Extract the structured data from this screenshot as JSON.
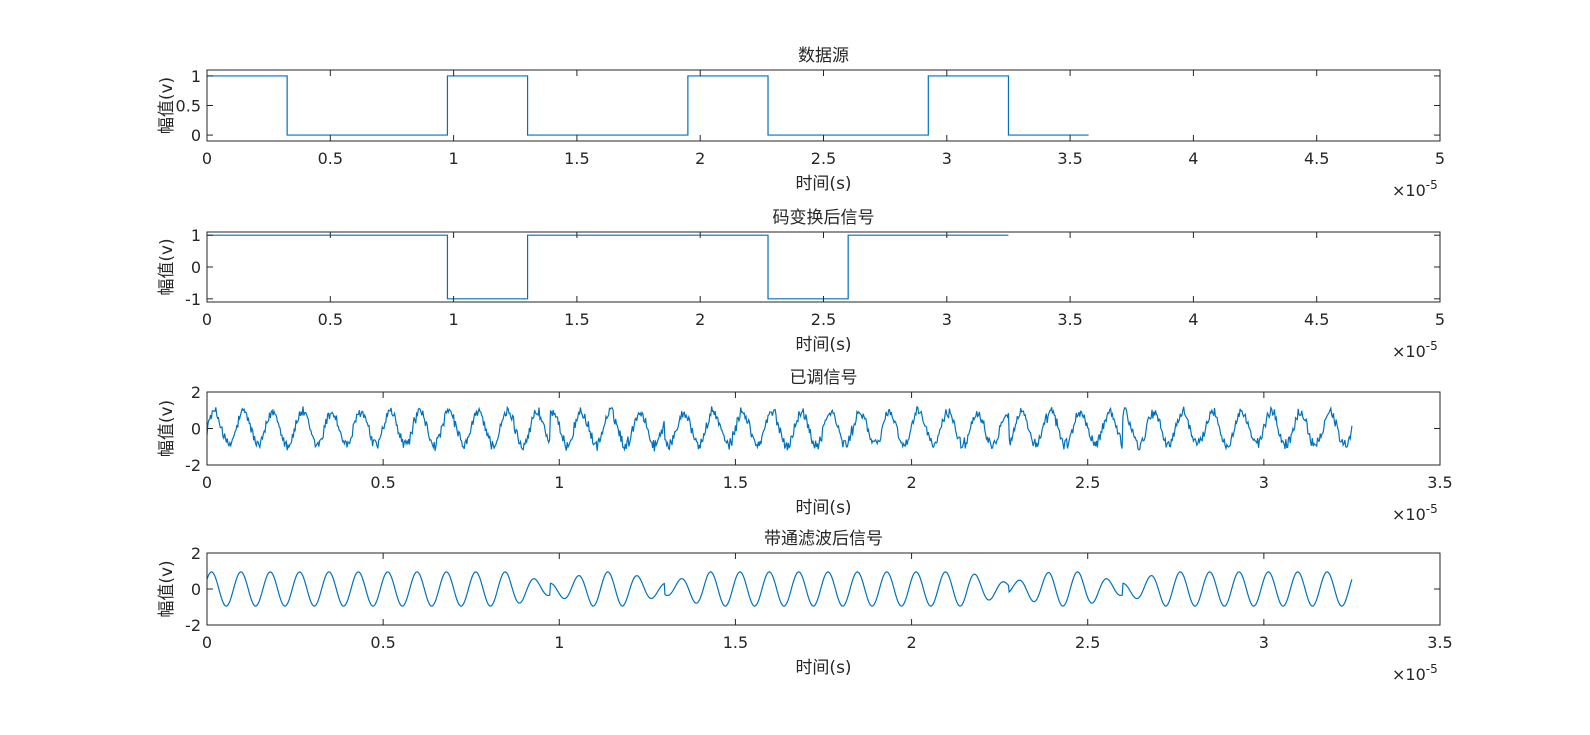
{
  "figure": {
    "background": "#ffffff",
    "axes_color": "#262626",
    "line_color": "#0072BD"
  },
  "chart_data": [
    {
      "type": "line",
      "title": "数据源",
      "xlabel": "时间(s)",
      "ylabel": "幅值(v)",
      "xlim": [
        0,
        5e-05
      ],
      "ylim": [
        -0.1,
        1.1
      ],
      "x_ticks": [
        0,
        0.5,
        1,
        1.5,
        2,
        2.5,
        3,
        3.5,
        4,
        4.5,
        5
      ],
      "x_tick_labels": [
        "0",
        "0.5",
        "1",
        "1.5",
        "2",
        "2.5",
        "3",
        "3.5",
        "4",
        "4.5",
        "5"
      ],
      "y_ticks": [
        0,
        0.5,
        1
      ],
      "y_tick_labels": [
        "0",
        "0.5",
        "1"
      ],
      "x_exponent": "×10",
      "x_exponent_power": "-5",
      "waveform": "step",
      "bit_period": 3.25e-06,
      "bits": [
        1,
        0,
        0,
        1,
        0,
        0,
        1,
        0,
        0,
        1,
        0
      ]
    },
    {
      "type": "line",
      "title": "码变换后信号",
      "xlabel": "时间(s)",
      "ylabel": "幅值(v)",
      "xlim": [
        0,
        5e-05
      ],
      "ylim": [
        -1.1,
        1.1
      ],
      "x_ticks": [
        0,
        0.5,
        1,
        1.5,
        2,
        2.5,
        3,
        3.5,
        4,
        4.5,
        5
      ],
      "x_tick_labels": [
        "0",
        "0.5",
        "1",
        "1.5",
        "2",
        "2.5",
        "3",
        "3.5",
        "4",
        "4.5",
        "5"
      ],
      "y_ticks": [
        -1,
        0,
        1
      ],
      "y_tick_labels": [
        "-1",
        "0",
        "1"
      ],
      "x_exponent": "×10",
      "x_exponent_power": "-5",
      "waveform": "step",
      "segments": [
        {
          "x0": 0,
          "x1": 9.75e-06,
          "y": 1
        },
        {
          "x0": 9.75e-06,
          "x1": 1.3e-05,
          "y": -1
        },
        {
          "x0": 1.3e-05,
          "x1": 2.275e-05,
          "y": 1
        },
        {
          "x0": 2.275e-05,
          "x1": 2.6e-05,
          "y": -1
        },
        {
          "x0": 2.6e-05,
          "x1": 3.25e-05,
          "y": 1
        }
      ]
    },
    {
      "type": "line",
      "title": "已调信号",
      "xlabel": "时间(s)",
      "ylabel": "幅值(v)",
      "xlim": [
        0,
        3.5e-05
      ],
      "ylim": [
        -2,
        2
      ],
      "x_ticks": [
        0,
        0.5,
        1,
        1.5,
        2,
        2.5,
        3,
        3.5
      ],
      "x_tick_labels": [
        "0",
        "0.5",
        "1",
        "1.5",
        "2",
        "2.5",
        "3",
        "3.5"
      ],
      "y_ticks": [
        -2,
        0,
        2
      ],
      "y_tick_labels": [
        "-2",
        "0",
        "2"
      ],
      "x_exponent": "×10",
      "x_exponent_power": "-5",
      "waveform": "noisy_modulated",
      "x_end": 3.25e-05,
      "carrier_hz": 1200000.0,
      "amplitude": 0.9,
      "noise_amplitude": 0.45,
      "phase_flips_at": [
        9.75e-06,
        1.3e-05,
        2.275e-05,
        2.6e-05
      ]
    },
    {
      "type": "line",
      "title": "带通滤波后信号",
      "xlabel": "时间(s)",
      "ylabel": "幅值(v)",
      "xlim": [
        0,
        3.5e-05
      ],
      "ylim": [
        -2,
        2
      ],
      "x_ticks": [
        0,
        0.5,
        1,
        1.5,
        2,
        2.5,
        3,
        3.5
      ],
      "x_tick_labels": [
        "0",
        "0.5",
        "1",
        "1.5",
        "2",
        "2.5",
        "3",
        "3.5"
      ],
      "y_ticks": [
        -2,
        0,
        2
      ],
      "y_tick_labels": [
        "-2",
        "0",
        "2"
      ],
      "x_exponent": "×10",
      "x_exponent_power": "-5",
      "waveform": "filtered_modulated",
      "x_end": 3.25e-05,
      "carrier_hz": 1200000.0,
      "amplitude": 1.0,
      "phase_flips_at": [
        9.75e-06,
        1.3e-05,
        2.275e-05,
        2.6e-05
      ]
    }
  ]
}
